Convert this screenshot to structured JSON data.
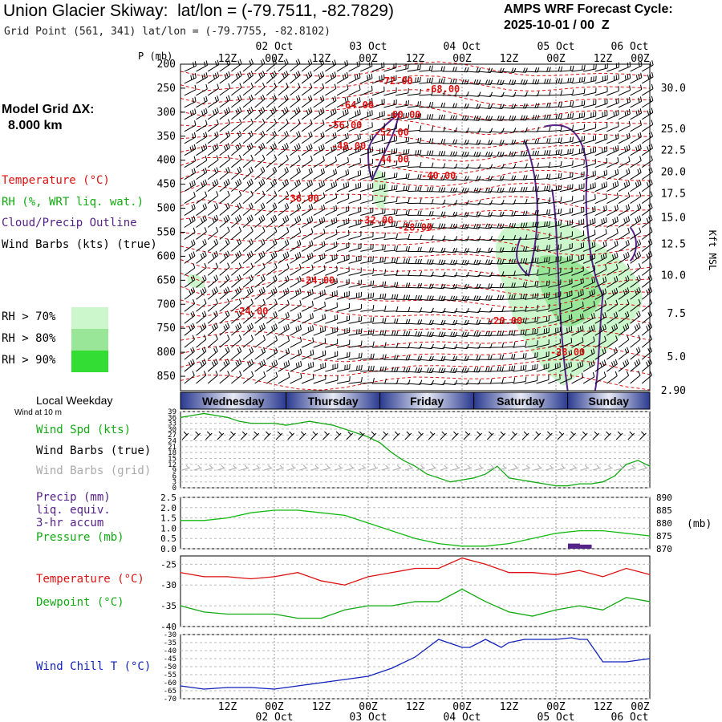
{
  "header": {
    "title": "Union Glacier Skiway:  lat/lon = (-79.7511, -82.7829)",
    "subtitle": "Grid Point (561, 341) lat/lon = (-79.7755, -82.8102)",
    "cycle_line1": "AMPS WRF Forecast Cycle:",
    "cycle_line2": "2025-10-01 / 00  Z"
  },
  "left_panel": {
    "grid_label": "Model Grid ΔX:",
    "grid_value": "8.000 km",
    "legend": [
      {
        "text": "Temperature (°C)",
        "color": "#dd1111"
      },
      {
        "text": "RH (%, WRT liq. wat.)",
        "color": "#11aa11"
      },
      {
        "text": "Cloud/Precip Outline",
        "color": "#552288"
      },
      {
        "text": "Wind Barbs (kts) (true)",
        "color": "#000000"
      }
    ],
    "rh_boxes": [
      {
        "text": "RH > 70%",
        "color": "#ccf7cc"
      },
      {
        "text": "RH > 80%",
        "color": "#99e699"
      },
      {
        "text": "RH > 90%",
        "color": "#33dd33"
      }
    ]
  },
  "time_axis": {
    "hour_labels": [
      "12Z",
      "00Z",
      "12Z",
      "00Z",
      "12Z",
      "00Z",
      "12Z",
      "00Z",
      "12Z",
      "00Z"
    ],
    "date_labels": [
      "02 Oct",
      "03 Oct",
      "04 Oct",
      "05 Oct",
      "06 Oct"
    ],
    "weekdays": [
      "Wednesday",
      "Thursday",
      "Friday",
      "Saturday",
      "Sunday"
    ],
    "weekday_title": "Local Weekday"
  },
  "colors": {
    "temp": "#dd1111",
    "rh": "#11aa11",
    "cloud": "#552288",
    "pressure": "#11bb11",
    "windchill": "#1122bb",
    "band_dark": "#2a3a90",
    "band_light": "#e8eaf5"
  },
  "chart_data": [
    {
      "type": "heatmap",
      "name": "cross-section",
      "x_range_hours": [
        0,
        120
      ],
      "y_label": "P (mb)",
      "y_ticks": [
        200,
        250,
        300,
        350,
        400,
        450,
        500,
        550,
        600,
        650,
        700,
        750,
        800,
        850
      ],
      "y_range": [
        200,
        880
      ],
      "right_label": "Kft MSL",
      "right_ticks": [
        "30.0",
        "25.0",
        "22.5",
        "20.0",
        "17.5",
        "15.0",
        "12.5",
        "10.0",
        "7.5",
        "5.0",
        "2.90"
      ],
      "right_tick_pressure": [
        250,
        335,
        380,
        425,
        470,
        520,
        575,
        640,
        720,
        810,
        880
      ],
      "temp_contours": [
        {
          "label": "-72.00",
          "t": 55,
          "p": 235
        },
        {
          "label": "-68.00",
          "t": 67,
          "p": 252
        },
        {
          "label": "-64.00",
          "t": 45,
          "p": 285
        },
        {
          "label": "-60.00",
          "t": 57,
          "p": 305
        },
        {
          "label": "-56.00",
          "t": 42,
          "p": 327
        },
        {
          "label": "-52.00",
          "t": 54,
          "p": 342
        },
        {
          "label": "-48.00",
          "t": 43,
          "p": 370
        },
        {
          "label": "-44.00",
          "t": 54,
          "p": 398
        },
        {
          "label": "-40.00",
          "t": 66,
          "p": 432
        },
        {
          "label": "-36.00",
          "t": 31,
          "p": 480
        },
        {
          "label": "-32.00",
          "t": 50,
          "p": 525
        },
        {
          "label": "-28.00",
          "t": 60,
          "p": 540
        },
        {
          "label": "-24.00",
          "t": 35,
          "p": 650
        },
        {
          "label": "-24.00",
          "t": 18,
          "p": 715
        },
        {
          "label": "-20.00",
          "t": 83,
          "p": 735
        },
        {
          "label": "-28.00",
          "t": 99,
          "p": 800
        }
      ]
    },
    {
      "type": "line",
      "name": "wind-speed",
      "title": "Wind at 10 m",
      "ylabel": "Wind Spd (kts)",
      "ylim": [
        0,
        39
      ],
      "y_ticks": [
        0,
        3,
        6,
        9,
        12,
        15,
        18,
        21,
        24,
        27,
        30,
        33,
        36,
        39
      ],
      "x_hours": [
        0,
        3,
        6,
        9,
        12,
        15,
        18,
        21,
        24,
        27,
        30,
        33,
        36,
        39,
        42,
        45,
        48,
        51,
        54,
        57,
        60,
        63,
        66,
        69,
        72,
        75,
        78,
        81,
        84,
        87,
        90,
        93,
        96,
        99,
        102,
        105,
        108,
        111,
        114,
        117,
        120
      ],
      "values": [
        36,
        37,
        38,
        37,
        36,
        34,
        33,
        33,
        33,
        32,
        33,
        34,
        33,
        32,
        30,
        28,
        26,
        23,
        18,
        14,
        11,
        7,
        5,
        3,
        4,
        5,
        7,
        11,
        5,
        4,
        3,
        2,
        1,
        1,
        2,
        2,
        3,
        6,
        12,
        14,
        11
      ],
      "series": [
        {
          "name": "Wind Spd (kts)"
        },
        {
          "name": "Wind Barbs (true)"
        },
        {
          "name": "Wind Barbs (grid)"
        }
      ]
    },
    {
      "type": "line",
      "name": "precip-pressure",
      "series": [
        {
          "name": "Precip (mm)",
          "note_lines": [
            "liq. equiv.",
            "3-hr accum"
          ],
          "axis": "left",
          "ylim": [
            0,
            2.5
          ],
          "y_ticks": [
            "0.0",
            "0.5",
            "1.0",
            "1.5",
            "2.0",
            "2.5"
          ],
          "bars": [
            {
              "t": 100.5,
              "value": 0.25
            },
            {
              "t": 103.5,
              "value": 0.2
            }
          ]
        },
        {
          "name": "Pressure (mb)",
          "axis": "right",
          "ylim": [
            870,
            890
          ],
          "y_ticks": [
            "870",
            "875",
            "880",
            "885",
            "890"
          ],
          "x_hours": [
            0,
            6,
            12,
            18,
            24,
            30,
            36,
            42,
            48,
            54,
            60,
            66,
            72,
            78,
            84,
            90,
            96,
            102,
            108,
            114,
            120
          ],
          "values": [
            881,
            881,
            882,
            884,
            885,
            885,
            884,
            883,
            880,
            877,
            874,
            872,
            871,
            871,
            872,
            874,
            876,
            877,
            877,
            876,
            875
          ]
        }
      ],
      "right_unit": "(mb)"
    },
    {
      "type": "line",
      "name": "temp-dew",
      "ylim": [
        -40,
        -23
      ],
      "y_ticks": [
        "-25",
        "-30",
        "-35",
        "-40"
      ],
      "x_hours": [
        0,
        6,
        12,
        18,
        24,
        30,
        36,
        42,
        48,
        54,
        60,
        66,
        72,
        78,
        84,
        90,
        96,
        102,
        108,
        114,
        120
      ],
      "series": [
        {
          "name": "Temperature (°C)",
          "color": "#dd1111",
          "values": [
            -27,
            -28,
            -28,
            -28.5,
            -28,
            -27,
            -29,
            -30,
            -28,
            -27,
            -26,
            -26,
            -23.5,
            -25,
            -27,
            -27,
            -27.5,
            -26.5,
            -28,
            -26,
            -27.5
          ]
        },
        {
          "name": "Dewpoint (°C)",
          "color": "#11aa11",
          "values": [
            -35,
            -36.5,
            -37,
            -37,
            -37,
            -38,
            -38,
            -36,
            -35,
            -35,
            -34,
            -34,
            -31,
            -34,
            -36.5,
            -37.5,
            -36,
            -35,
            -36,
            -33,
            -34
          ]
        }
      ]
    },
    {
      "type": "line",
      "name": "wind-chill",
      "ylabel": "Wind Chill T (°C)",
      "ylim": [
        -70,
        -30
      ],
      "y_ticks": [
        "-30",
        "-35",
        "-40",
        "-45",
        "-50",
        "-55",
        "-60",
        "-65",
        "-70"
      ],
      "x_hours": [
        0,
        6,
        12,
        18,
        24,
        30,
        36,
        42,
        48,
        54,
        60,
        66,
        72,
        74,
        78,
        82,
        84,
        88,
        92,
        96,
        100,
        102,
        104,
        108,
        114,
        120
      ],
      "values": [
        -62,
        -64,
        -63,
        -63,
        -64,
        -62,
        -60,
        -58,
        -56,
        -51,
        -44,
        -33,
        -38,
        -38,
        -33,
        -38,
        -35,
        -33,
        -33,
        -33,
        -32,
        -33,
        -33,
        -47,
        -47,
        -45
      ]
    }
  ]
}
